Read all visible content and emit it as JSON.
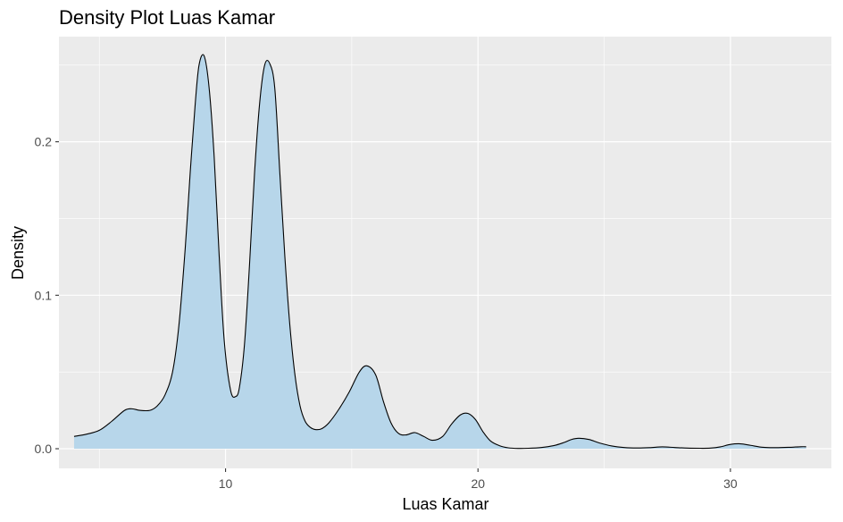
{
  "chart_data": {
    "type": "area",
    "title": "Density Plot Luas Kamar",
    "xlabel": "Luas Kamar",
    "ylabel": "Density",
    "xlim": [
      3.4,
      34.0
    ],
    "ylim": [
      -0.0128,
      0.2685
    ],
    "x_ticks": [
      {
        "value": 10,
        "label": "10"
      },
      {
        "value": 20,
        "label": "20"
      },
      {
        "value": 30,
        "label": "30"
      }
    ],
    "x_minor_ticks": [
      5,
      15,
      25
    ],
    "y_ticks": [
      {
        "value": 0.0,
        "label": "0.0"
      },
      {
        "value": 0.1,
        "label": "0.1"
      },
      {
        "value": 0.2,
        "label": "0.2"
      }
    ],
    "y_minor_ticks": [
      0.05,
      0.15,
      0.25
    ],
    "grid": true,
    "colors": {
      "panel_background": "#EBEBEB",
      "grid_line": "#FFFFFF",
      "fill": "#B7D6EA",
      "outline": "#000000",
      "tick_text": "#4D4D4D"
    },
    "series": [
      {
        "x": [
          4.0,
          4.5,
          5.0,
          5.5,
          6.0,
          6.3,
          6.6,
          7.0,
          7.3,
          7.6,
          7.9,
          8.15,
          8.4,
          8.6,
          8.8,
          8.95,
          9.15,
          9.35,
          9.55,
          9.75,
          9.95,
          10.2,
          10.4,
          10.55,
          10.75,
          10.95,
          11.15,
          11.35,
          11.55,
          11.75,
          11.95,
          12.15,
          12.35,
          12.55,
          12.75,
          12.95,
          13.15,
          13.35,
          13.55,
          13.8,
          14.1,
          14.5,
          14.9,
          15.3,
          15.6,
          15.95,
          16.25,
          16.55,
          16.85,
          17.15,
          17.5,
          17.85,
          18.2,
          18.6,
          18.95,
          19.3,
          19.6,
          19.9,
          20.2,
          20.5,
          20.85,
          21.2,
          21.6,
          22.0,
          22.5,
          23.0,
          23.4,
          23.7,
          24.0,
          24.4,
          24.8,
          25.3,
          25.8,
          26.3,
          26.8,
          27.3,
          27.8,
          28.3,
          28.8,
          29.2,
          29.6,
          30.0,
          30.4,
          30.8,
          31.3,
          31.8,
          32.3,
          32.8,
          33.0
        ],
        "y": [
          0.008,
          0.0095,
          0.012,
          0.018,
          0.025,
          0.026,
          0.025,
          0.025,
          0.028,
          0.035,
          0.05,
          0.08,
          0.13,
          0.18,
          0.225,
          0.25,
          0.256,
          0.235,
          0.19,
          0.125,
          0.07,
          0.038,
          0.034,
          0.04,
          0.068,
          0.12,
          0.18,
          0.225,
          0.25,
          0.251,
          0.235,
          0.18,
          0.125,
          0.08,
          0.048,
          0.028,
          0.018,
          0.014,
          0.0125,
          0.013,
          0.017,
          0.026,
          0.037,
          0.05,
          0.054,
          0.048,
          0.031,
          0.017,
          0.01,
          0.009,
          0.0105,
          0.008,
          0.0055,
          0.008,
          0.016,
          0.022,
          0.023,
          0.019,
          0.011,
          0.005,
          0.002,
          0.0006,
          0.0002,
          0.0003,
          0.0008,
          0.002,
          0.004,
          0.006,
          0.0068,
          0.006,
          0.0038,
          0.0018,
          0.0008,
          0.0005,
          0.0007,
          0.0012,
          0.0008,
          0.0004,
          0.0003,
          0.0004,
          0.0012,
          0.0028,
          0.0032,
          0.0022,
          0.0009,
          0.0007,
          0.0009,
          0.0013,
          0.0013
        ]
      }
    ]
  }
}
